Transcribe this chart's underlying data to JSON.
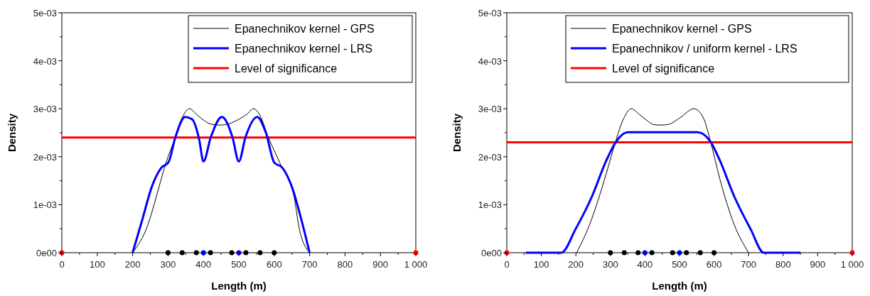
{
  "chart_data": [
    {
      "type": "line",
      "xlabel": "Length (m)",
      "ylabel": "Density",
      "xlim": [
        0,
        1000
      ],
      "ylim": [
        0,
        0.005
      ],
      "legend": "top right",
      "grid": false,
      "xticks": [
        0,
        {
          "value": 50,
          "label": null
        },
        100,
        {
          "value": 150,
          "label": null
        },
        200,
        {
          "value": 250,
          "label": null
        },
        300,
        {
          "value": 350,
          "label": null
        },
        400,
        {
          "value": 450,
          "label": null
        },
        500,
        {
          "value": 550,
          "label": null
        },
        600,
        {
          "value": 650,
          "label": null
        },
        700,
        {
          "value": 750,
          "label": null
        },
        800,
        {
          "value": 850,
          "label": null
        },
        900,
        {
          "value": 950,
          "label": null
        },
        {
          "value": 1000,
          "label": "1 000"
        }
      ],
      "yticks": [
        {
          "value": 0,
          "label": "0e00"
        },
        {
          "value": 0.0005,
          "label": null
        },
        {
          "value": 0.001,
          "label": "1e-03"
        },
        {
          "value": 0.0015,
          "label": null
        },
        {
          "value": 0.002,
          "label": "2e-03"
        },
        {
          "value": 0.0025,
          "label": null
        },
        {
          "value": 0.003,
          "label": "3e-03"
        },
        {
          "value": 0.0035,
          "label": null
        },
        {
          "value": 0.004,
          "label": "4e-03"
        },
        {
          "value": 0.0045,
          "label": null
        },
        {
          "value": 0.005,
          "label": "5e-03"
        }
      ],
      "series": [
        {
          "name": "Epanechnikov kernel - GPS",
          "color": "#000000",
          "x": [
            200,
            244,
            267,
            294,
            321,
            341,
            361,
            381,
            401,
            421,
            448,
            468,
            495,
            522,
            542,
            560,
            583,
            616,
            656,
            670,
            700
          ],
          "values": [
            0,
            0.0006,
            0.00117,
            0.00187,
            0.00241,
            0.00283,
            0.003,
            0.00288,
            0.00276,
            0.00268,
            0.00266,
            0.00268,
            0.00276,
            0.00288,
            0.003,
            0.00286,
            0.00241,
            0.00187,
            0.00117,
            0.00053,
            0
          ]
        },
        {
          "name": "Epanechnikov kernel - LRS",
          "color": "#0000ff",
          "x": [
            200,
            227,
            254,
            281,
            301,
            321,
            348,
            368,
            388,
            400,
            421,
            452,
            482,
            500,
            519,
            552,
            576,
            600,
            623,
            650,
            677,
            700
          ],
          "values": [
            0,
            0.00068,
            0.00137,
            0.00177,
            0.00188,
            0.00241,
            0.00283,
            0.00278,
            0.00236,
            0.0019,
            0.00241,
            0.00283,
            0.00241,
            0.0019,
            0.00241,
            0.00283,
            0.00251,
            0.00188,
            0.00177,
            0.00137,
            0.00068,
            0
          ]
        },
        {
          "type": "scatter",
          "color": "#000000",
          "x": [
            300,
            340,
            380,
            420,
            480,
            520,
            560,
            600
          ],
          "values": [
            0,
            0,
            0,
            0,
            0,
            0,
            0,
            0
          ]
        },
        {
          "type": "scatter",
          "color": "#0000ff",
          "x": [
            400,
            500
          ],
          "values": [
            0,
            0
          ]
        },
        {
          "type": "scatter",
          "color": "#ff0000",
          "x": [
            0,
            1000
          ],
          "values": [
            0,
            0
          ]
        }
      ],
      "ref_lines": [
        {
          "axis": "y",
          "value": 0.0024,
          "label": "Level of significance",
          "color": "#ff0000"
        }
      ]
    },
    {
      "type": "line",
      "xlabel": "Length (m)",
      "ylabel": "Density",
      "xlim": [
        0,
        1000
      ],
      "ylim": [
        0,
        0.005
      ],
      "legend": "top right",
      "grid": false,
      "xticks": [
        0,
        {
          "value": 50,
          "label": null
        },
        100,
        {
          "value": 150,
          "label": null
        },
        200,
        {
          "value": 250,
          "label": null
        },
        300,
        {
          "value": 350,
          "label": null
        },
        400,
        {
          "value": 450,
          "label": null
        },
        500,
        {
          "value": 550,
          "label": null
        },
        600,
        {
          "value": 650,
          "label": null
        },
        700,
        {
          "value": 750,
          "label": null
        },
        800,
        {
          "value": 850,
          "label": null
        },
        900,
        {
          "value": 950,
          "label": null
        },
        {
          "value": 1000,
          "label": "1 000"
        }
      ],
      "yticks": [
        {
          "value": 0,
          "label": "0e00"
        },
        {
          "value": 0.0005,
          "label": null
        },
        {
          "value": 0.001,
          "label": "1e-03"
        },
        {
          "value": 0.0015,
          "label": null
        },
        {
          "value": 0.002,
          "label": "2e-03"
        },
        {
          "value": 0.0025,
          "label": null
        },
        {
          "value": 0.003,
          "label": "3e-03"
        },
        {
          "value": 0.0035,
          "label": null
        },
        {
          "value": 0.004,
          "label": "4e-03"
        },
        {
          "value": 0.0045,
          "label": null
        },
        {
          "value": 0.005,
          "label": "5e-03"
        }
      ],
      "series": [
        {
          "name": "Epanechnikov kernel - GPS",
          "color": "#000000",
          "x": [
            202,
            240,
            281,
            309,
            336,
            360,
            384,
            405,
            425,
            446,
            466,
            501,
            542,
            569,
            590,
            617,
            658,
            700
          ],
          "values": [
            0,
            0.00059,
            0.00148,
            0.00217,
            0.00276,
            0.003,
            0.00288,
            0.00276,
            0.00267,
            0.00266,
            0.00267,
            0.00281,
            0.003,
            0.00281,
            0.00231,
            0.00153,
            0.00059,
            0
          ]
        },
        {
          "name": "Epanechnikov / uniform kernel - LRS",
          "color": "#0000ff",
          "x": [
            55,
            158,
            199,
            247,
            288,
            316,
            350,
            552,
            590,
            617,
            658,
            706,
            744,
            850
          ],
          "values": [
            0,
            0,
            0.00049,
            0.00118,
            0.00192,
            0.00231,
            0.00251,
            0.00251,
            0.00231,
            0.00192,
            0.00118,
            0.00049,
            0,
            0
          ]
        },
        {
          "type": "scatter",
          "color": "#000000",
          "x": [
            300,
            340,
            380,
            420,
            480,
            520,
            560,
            600
          ],
          "values": [
            0,
            0,
            0,
            0,
            0,
            0,
            0,
            0
          ]
        },
        {
          "type": "scatter",
          "color": "#0000ff",
          "x": [
            400,
            500
          ],
          "values": [
            0,
            0
          ]
        },
        {
          "type": "scatter",
          "color": "#ff0000",
          "x": [
            0,
            1000
          ],
          "values": [
            0,
            0
          ]
        }
      ],
      "ref_lines": [
        {
          "axis": "y",
          "value": 0.0023,
          "label": "Level of significance",
          "color": "#ff0000"
        }
      ]
    }
  ]
}
